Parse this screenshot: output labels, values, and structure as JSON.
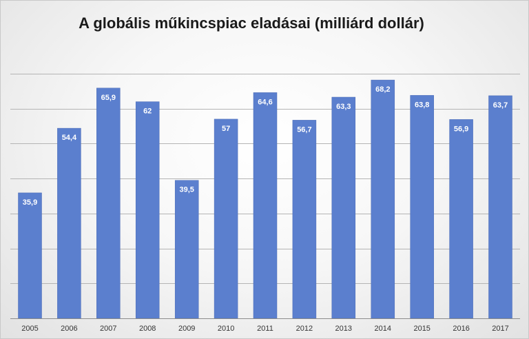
{
  "chart_data": {
    "type": "bar",
    "title": "A globális műkincspiac eladásai (milliárd dollár)",
    "categories": [
      "2005",
      "2006",
      "2007",
      "2008",
      "2009",
      "2010",
      "2011",
      "2012",
      "2013",
      "2014",
      "2015",
      "2016",
      "2017"
    ],
    "values": [
      35.9,
      54.4,
      65.9,
      62,
      39.5,
      57,
      64.6,
      56.7,
      63.3,
      68.2,
      63.8,
      56.9,
      63.7
    ],
    "data_labels": [
      "35,9",
      "54,4",
      "65,9",
      "62",
      "39,5",
      "57",
      "64,6",
      "56,7",
      "63,3",
      "68,2",
      "63,8",
      "56,9",
      "63,7"
    ],
    "xlabel": "",
    "ylabel": "",
    "ylim": [
      0,
      70
    ],
    "gridlines": [
      10,
      20,
      30,
      40,
      50,
      60,
      70
    ],
    "grid": true,
    "legend": "none",
    "colors": {
      "bar": "#5b7fce",
      "bar_edge": "#4a6ab5",
      "grid": "#b4b4b4",
      "axis": "#8c8c8c"
    }
  }
}
